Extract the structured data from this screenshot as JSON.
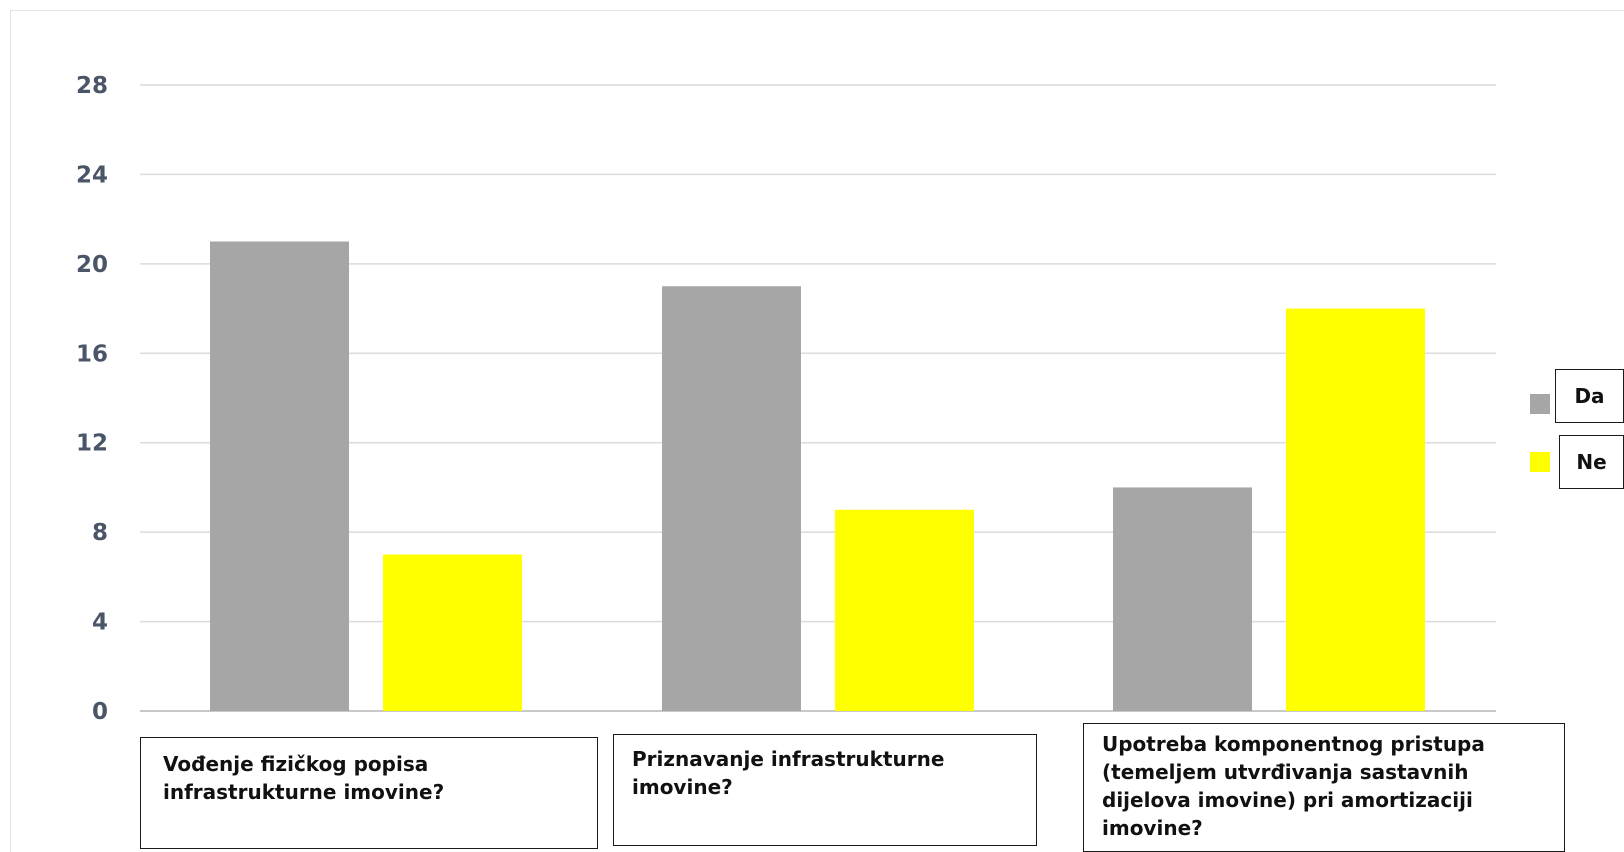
{
  "chart_data": {
    "type": "bar",
    "categories": [
      "Vođenje fizičkog popisa infrastrukturne imovine?",
      "Priznavanje infrastrukturne imovine?",
      "Upotreba komponentnog pristupa (temeljem utvrđivanja sastavnih dijelova imovine) pri amortizaciji imovine?"
    ],
    "series": [
      {
        "name": "Da",
        "values": [
          21,
          19,
          10
        ],
        "color": "#a6a6a6"
      },
      {
        "name": "Ne",
        "values": [
          7,
          9,
          18
        ],
        "color": "#ffff00"
      }
    ],
    "ylim": [
      0,
      28
    ],
    "yticks": [
      "0",
      "4",
      "8",
      "12",
      "16",
      "20",
      "24",
      "28"
    ],
    "grid": true,
    "legend_position": "right"
  }
}
